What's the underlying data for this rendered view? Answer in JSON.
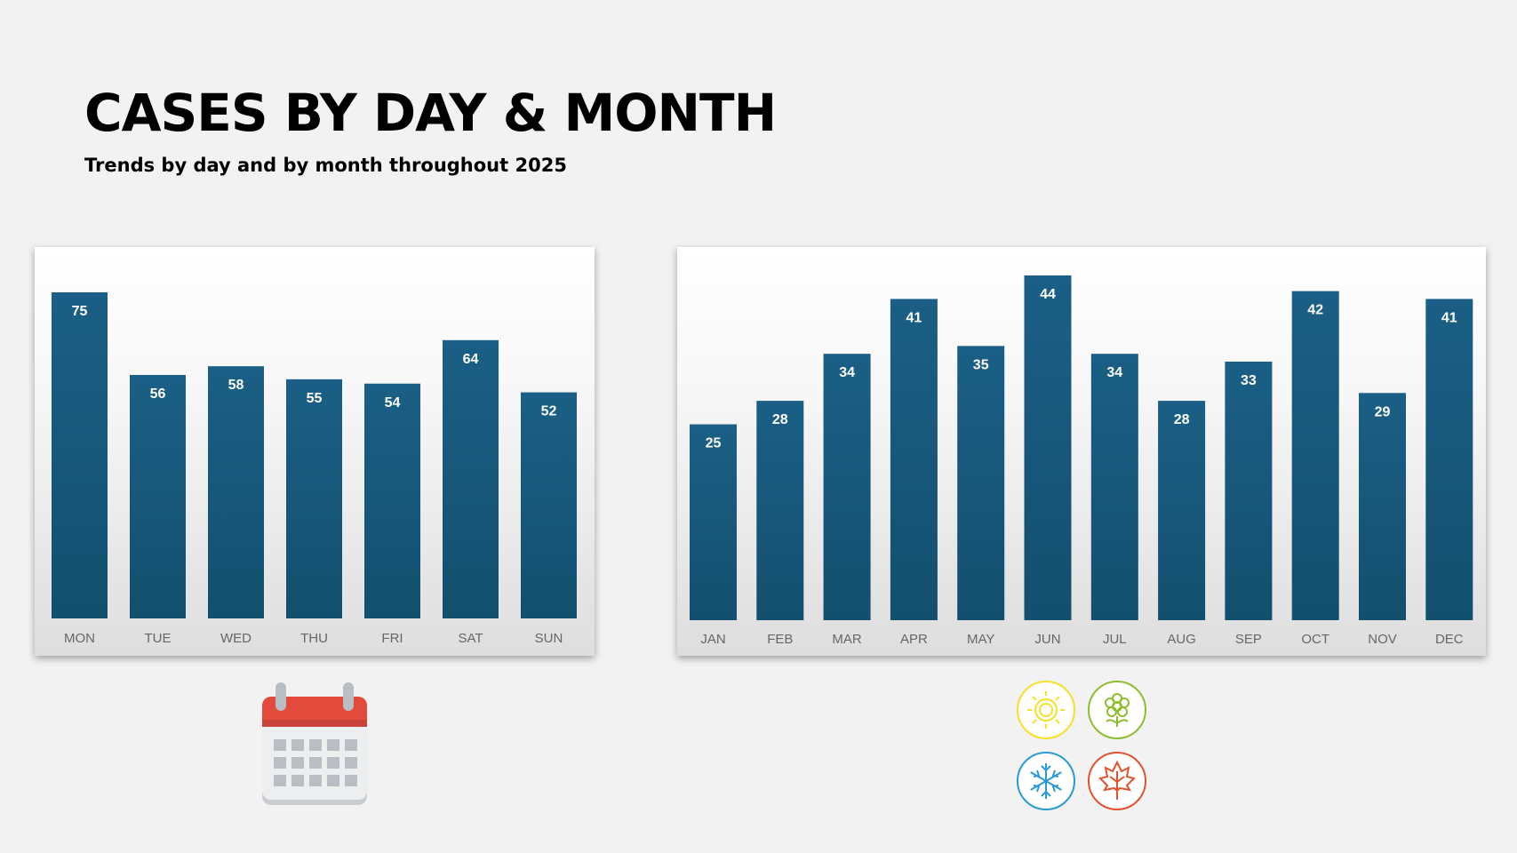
{
  "header": {
    "title": "CASES BY DAY & MONTH",
    "subtitle": "Trends by day and by month throughout 2025"
  },
  "colors": {
    "bar_top": "#1b5f86",
    "bar_bottom": "#134f6e",
    "sun": "#f5e02a",
    "flower": "#8dbd2e",
    "snowflake": "#2a9ad6",
    "leaf": "#e0532c",
    "calendar_header": "#e24b3b"
  },
  "icons": {
    "calendar": "calendar-icon",
    "seasons": [
      "sun-icon",
      "flower-icon",
      "snowflake-icon",
      "maple-leaf-icon"
    ]
  },
  "chart_data": [
    {
      "type": "bar",
      "categories": [
        "MON",
        "TUE",
        "WED",
        "THU",
        "FRI",
        "SAT",
        "SUN"
      ],
      "values": [
        75,
        56,
        58,
        55,
        54,
        64,
        52
      ],
      "title": "",
      "xlabel": "",
      "ylabel": "",
      "ylim": [
        0,
        75
      ],
      "grid": false,
      "data_labels": true
    },
    {
      "type": "bar",
      "categories": [
        "JAN",
        "FEB",
        "MAR",
        "APR",
        "MAY",
        "JUN",
        "JUL",
        "AUG",
        "SEP",
        "OCT",
        "NOV",
        "DEC"
      ],
      "values": [
        25,
        28,
        34,
        41,
        35,
        44,
        34,
        28,
        33,
        42,
        29,
        41
      ],
      "title": "",
      "xlabel": "",
      "ylabel": "",
      "ylim": [
        0,
        44
      ],
      "grid": false,
      "data_labels": true
    }
  ]
}
